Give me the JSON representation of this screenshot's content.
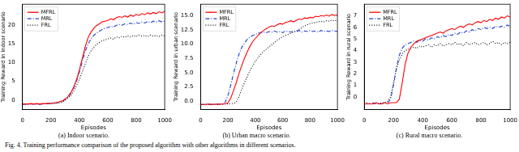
{
  "chart_data": [
    {
      "type": "line",
      "title": "(a) Indoor scenario.",
      "x_label": "Episodes",
      "y_label": "Training Reward in Indoor scenario",
      "x": [
        0,
        20,
        40,
        60,
        80,
        100,
        120,
        140,
        160,
        180,
        200,
        220,
        240,
        260,
        280,
        300,
        320,
        340,
        360,
        380,
        400,
        420,
        440,
        460,
        480,
        500,
        520,
        540,
        560,
        580,
        600,
        620,
        640,
        660,
        680,
        700,
        720,
        740,
        760,
        780,
        800,
        820,
        840,
        860,
        880,
        900,
        920,
        940,
        960,
        980,
        1000
      ],
      "series": [
        {
          "name": "MFRL",
          "color": "#ff0000",
          "line_style": "solid",
          "values": [
            -1.0,
            -1.0,
            -1.0,
            -0.9,
            -1.0,
            -0.9,
            -1.0,
            -0.9,
            -0.9,
            -0.8,
            -0.8,
            -0.7,
            -0.6,
            -0.4,
            -0.2,
            0.3,
            1.0,
            2.0,
            3.5,
            5.5,
            8.0,
            11.0,
            14.0,
            16.5,
            18.0,
            19.0,
            19.8,
            20.3,
            20.8,
            21.0,
            21.2,
            21.6,
            21.4,
            21.9,
            22.2,
            22.0,
            22.4,
            22.1,
            22.6,
            22.3,
            22.8,
            22.5,
            23.0,
            22.7,
            23.2,
            22.9,
            23.3,
            23.0,
            23.5,
            23.2,
            23.6
          ]
        },
        {
          "name": "MRL",
          "color": "#1f3fd0",
          "line_style": "dashdot",
          "values": [
            -1.1,
            -1.0,
            -1.1,
            -1.0,
            -1.0,
            -1.0,
            -1.1,
            -1.0,
            -0.9,
            -0.9,
            -0.8,
            -0.8,
            -0.7,
            -0.5,
            -0.3,
            0.2,
            0.8,
            1.8,
            3.2,
            5.0,
            7.5,
            10.2,
            12.8,
            14.8,
            16.2,
            17.2,
            17.8,
            18.3,
            18.8,
            19.1,
            19.3,
            19.6,
            19.4,
            19.9,
            20.1,
            19.9,
            20.3,
            20.1,
            20.5,
            20.2,
            20.6,
            20.4,
            20.8,
            20.5,
            20.9,
            20.6,
            21.0,
            20.7,
            21.1,
            20.8,
            21.0
          ]
        },
        {
          "name": "FRL",
          "color": "#000000",
          "line_style": "dotted",
          "values": [
            -1.0,
            -1.1,
            -1.0,
            -1.0,
            -1.1,
            -1.0,
            -1.0,
            -1.0,
            -0.9,
            -1.0,
            -0.9,
            -0.9,
            -0.8,
            -0.7,
            -0.5,
            0.0,
            0.5,
            1.3,
            2.4,
            3.8,
            5.5,
            7.5,
            9.5,
            11.5,
            13.0,
            14.0,
            14.8,
            15.3,
            15.8,
            16.0,
            16.3,
            16.5,
            16.2,
            16.8,
            16.6,
            17.0,
            16.7,
            17.1,
            16.8,
            17.2,
            16.9,
            17.3,
            17.0,
            17.2,
            16.9,
            17.3,
            17.0,
            17.2,
            16.9,
            17.3,
            17.1
          ]
        }
      ],
      "xlim": [
        0,
        1000
      ],
      "xticks": [
        0,
        200,
        400,
        600,
        800,
        1000
      ],
      "ylim": [
        -2.5,
        25.5
      ],
      "yticks": [
        0,
        5,
        10,
        15,
        20
      ],
      "grid": false,
      "legend": "upper left"
    },
    {
      "type": "line",
      "title": "(b) Urban macro scenario.",
      "x_label": "Episodes",
      "y_label": "Training Reward in urban scenario",
      "x": [
        0,
        20,
        40,
        60,
        80,
        100,
        120,
        140,
        160,
        180,
        200,
        220,
        240,
        260,
        280,
        300,
        320,
        340,
        360,
        380,
        400,
        420,
        440,
        460,
        480,
        500,
        520,
        540,
        560,
        580,
        600,
        620,
        640,
        660,
        680,
        700,
        720,
        740,
        760,
        780,
        800,
        820,
        840,
        860,
        880,
        900,
        920,
        940,
        960,
        980,
        1000
      ],
      "series": [
        {
          "name": "MFRL",
          "color": "#ff0000",
          "line_style": "solid",
          "values": [
            -0.6,
            -0.6,
            -0.6,
            -0.5,
            -0.6,
            -0.6,
            -0.5,
            -0.6,
            -0.5,
            -0.5,
            -0.3,
            0.5,
            1.8,
            3.2,
            4.8,
            6.2,
            7.5,
            8.6,
            9.6,
            10.4,
            11.0,
            11.5,
            12.0,
            12.4,
            12.7,
            13.0,
            13.2,
            13.1,
            13.4,
            13.6,
            13.5,
            13.8,
            13.9,
            14.1,
            13.9,
            14.2,
            14.4,
            14.3,
            14.6,
            14.5,
            14.7,
            14.6,
            14.9,
            14.8,
            15.0,
            14.9,
            15.1,
            14.9,
            15.2,
            15.0,
            15.1
          ]
        },
        {
          "name": "MRL",
          "color": "#1f3fd0",
          "line_style": "dashdot",
          "values": [
            -0.6,
            -0.6,
            -0.5,
            -0.6,
            -0.6,
            -0.5,
            -0.6,
            -0.5,
            -0.5,
            -0.2,
            1.0,
            2.8,
            4.8,
            6.6,
            8.2,
            9.4,
            10.2,
            10.8,
            11.2,
            11.5,
            11.7,
            11.9,
            12.0,
            12.1,
            12.0,
            12.2,
            12.1,
            12.3,
            12.1,
            12.2,
            12.0,
            12.3,
            12.2,
            12.1,
            12.3,
            12.2,
            12.4,
            12.1,
            12.3,
            12.2,
            12.4,
            12.2,
            12.3,
            12.1,
            12.4,
            12.2,
            12.3,
            12.2,
            12.4,
            12.3,
            12.2
          ]
        },
        {
          "name": "FRL",
          "color": "#000000",
          "line_style": "dotted",
          "values": [
            -0.6,
            -0.6,
            -0.6,
            -0.6,
            -0.5,
            -0.6,
            -0.6,
            -0.5,
            -0.6,
            -0.5,
            -0.5,
            -0.5,
            -0.4,
            -0.2,
            0.8,
            2.0,
            3.2,
            4.3,
            5.3,
            6.2,
            7.0,
            7.6,
            8.2,
            8.7,
            9.1,
            9.5,
            9.9,
            10.3,
            10.7,
            11.0,
            11.3,
            11.5,
            11.7,
            11.9,
            12.1,
            12.3,
            12.6,
            12.9,
            13.2,
            13.4,
            13.6,
            13.7,
            13.8,
            13.9,
            14.0,
            13.9,
            14.1,
            14.0,
            14.2,
            14.1,
            14.2
          ]
        }
      ],
      "xlim": [
        0,
        1000
      ],
      "xticks": [
        0,
        200,
        400,
        600,
        800,
        1000
      ],
      "ylim": [
        -1.5,
        17
      ],
      "yticks": [
        {
          "value": 0,
          "label": "0.0"
        },
        2.5,
        {
          "value": 5,
          "label": "5.0"
        },
        7.5,
        {
          "value": 10,
          "label": "10.0"
        },
        12.5,
        {
          "value": 15,
          "label": "15.0"
        }
      ],
      "grid": false,
      "legend": "upper left"
    },
    {
      "type": "line",
      "title": "(c) Rural macro scenario.",
      "x_label": "Episodes",
      "y_label": "Training Reward in rural scenario",
      "x": [
        0,
        20,
        40,
        60,
        80,
        100,
        120,
        140,
        160,
        180,
        200,
        220,
        240,
        260,
        280,
        300,
        320,
        340,
        360,
        380,
        400,
        420,
        440,
        460,
        480,
        500,
        520,
        540,
        560,
        580,
        600,
        620,
        640,
        660,
        680,
        700,
        720,
        740,
        760,
        780,
        800,
        820,
        840,
        860,
        880,
        900,
        920,
        940,
        960,
        980,
        1000
      ],
      "series": [
        {
          "name": "MFRL",
          "color": "#ff0000",
          "line_style": "solid",
          "values": [
            -0.6,
            -0.6,
            -0.6,
            -0.6,
            -0.5,
            -0.6,
            -0.6,
            -0.5,
            -0.6,
            -0.5,
            -0.5,
            -0.5,
            -0.2,
            1.2,
            2.8,
            3.8,
            4.3,
            4.6,
            4.8,
            4.9,
            5.0,
            5.1,
            5.2,
            5.3,
            5.4,
            5.5,
            5.6,
            5.5,
            5.7,
            5.8,
            5.9,
            5.8,
            6.0,
            6.1,
            6.0,
            6.2,
            6.3,
            6.2,
            6.4,
            6.5,
            6.4,
            6.6,
            6.5,
            6.7,
            6.6,
            6.8,
            6.7,
            6.9,
            6.8,
            7.0,
            6.9
          ]
        },
        {
          "name": "MRL",
          "color": "#1f3fd0",
          "line_style": "dashdot",
          "values": [
            -0.6,
            -0.6,
            -0.6,
            -0.5,
            -0.6,
            -0.5,
            -0.6,
            -0.5,
            -0.5,
            -0.2,
            1.0,
            2.5,
            3.6,
            4.2,
            4.5,
            4.6,
            4.7,
            4.8,
            4.7,
            4.9,
            4.8,
            5.0,
            4.9,
            5.1,
            5.0,
            5.2,
            5.1,
            5.3,
            5.2,
            5.4,
            5.3,
            5.5,
            5.4,
            5.6,
            5.5,
            5.7,
            5.6,
            5.8,
            5.7,
            5.9,
            5.8,
            6.0,
            5.9,
            6.0,
            5.9,
            6.1,
            6.0,
            6.1,
            6.0,
            6.2,
            6.1
          ]
        },
        {
          "name": "FRL",
          "color": "#000000",
          "line_style": "dotted",
          "values": [
            -0.6,
            -0.5,
            -0.6,
            -0.6,
            -0.5,
            -0.6,
            -0.5,
            -0.5,
            -0.4,
            0.0,
            1.2,
            2.4,
            3.2,
            3.7,
            4.0,
            4.1,
            4.2,
            4.3,
            4.2,
            4.4,
            4.3,
            4.4,
            4.5,
            4.3,
            4.5,
            4.4,
            4.6,
            4.4,
            4.5,
            4.6,
            4.5,
            4.7,
            4.5,
            4.6,
            4.4,
            4.7,
            4.5,
            4.6,
            4.7,
            4.5,
            4.6,
            4.7,
            4.5,
            4.6,
            4.8,
            4.6,
            4.7,
            4.5,
            4.7,
            4.6,
            4.7
          ]
        }
      ],
      "xlim": [
        0,
        1000
      ],
      "xticks": [
        0,
        200,
        400,
        600,
        800,
        1000
      ],
      "ylim": [
        -1.1,
        8
      ],
      "yticks": [
        0,
        1,
        2,
        3,
        4,
        5,
        6,
        7
      ],
      "grid": false,
      "legend": "upper left"
    }
  ],
  "caption": "Fig. 4.  Training performance comparison of the proposed algorithm with other algorithms in different scenarios."
}
